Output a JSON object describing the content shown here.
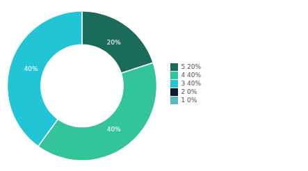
{
  "chart_data": {
    "type": "pie",
    "categories": [
      "5  20%",
      "4  40%",
      "3  40%",
      "2  0%",
      "1  0%"
    ],
    "values": [
      20,
      40,
      40,
      0,
      0
    ],
    "value_labels": [
      "20%",
      "40%",
      "40%",
      null,
      null
    ],
    "colors": [
      "#1a6b5a",
      "#33c49a",
      "#22c5d5",
      "#0d1b2e",
      "#5ab8c4"
    ],
    "data_labels": true,
    "legend": "right"
  }
}
